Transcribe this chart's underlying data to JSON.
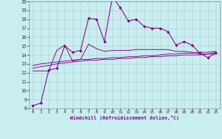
{
  "xlabel": "Windchill (Refroidissement éolien,°C)",
  "background_color": "#c8eef0",
  "line_color": "#880088",
  "xlim": [
    -0.5,
    23.5
  ],
  "ylim": [
    8,
    20
  ],
  "xticks": [
    0,
    1,
    2,
    3,
    4,
    5,
    6,
    7,
    8,
    9,
    10,
    11,
    12,
    13,
    14,
    15,
    16,
    17,
    18,
    19,
    20,
    21,
    22,
    23
  ],
  "yticks": [
    8,
    9,
    10,
    11,
    12,
    13,
    14,
    15,
    16,
    17,
    18,
    19,
    20
  ],
  "main_x": [
    0,
    1,
    2,
    3,
    4,
    5,
    6,
    7,
    8,
    9,
    10,
    11,
    12,
    13,
    14,
    15,
    16,
    17,
    18,
    19,
    20,
    21,
    22,
    23
  ],
  "main_y": [
    8.3,
    8.6,
    12.3,
    12.5,
    15.0,
    14.3,
    14.5,
    18.1,
    18.0,
    15.5,
    20.5,
    19.3,
    17.8,
    18.0,
    17.2,
    17.0,
    17.0,
    16.6,
    15.1,
    15.5,
    15.1,
    14.2,
    13.7,
    14.2
  ],
  "line1_x": [
    0,
    1,
    2,
    3,
    4,
    5,
    6,
    7,
    8,
    9,
    10,
    11,
    12,
    13,
    14,
    15,
    16,
    17,
    18,
    19,
    20,
    21,
    22,
    23
  ],
  "line1_y": [
    12.2,
    12.2,
    12.2,
    14.5,
    15.1,
    13.3,
    13.5,
    15.2,
    14.7,
    14.4,
    14.5,
    14.5,
    14.5,
    14.6,
    14.6,
    14.6,
    14.6,
    14.6,
    14.4,
    14.4,
    14.3,
    14.1,
    14.1,
    14.3
  ],
  "line2_x": [
    0,
    1,
    2,
    3,
    4,
    5,
    6,
    7,
    8,
    9,
    10,
    11,
    12,
    13,
    14,
    15,
    16,
    17,
    18,
    19,
    20,
    21,
    22,
    23
  ],
  "line2_y": [
    12.5,
    12.7,
    12.8,
    13.0,
    13.1,
    13.2,
    13.3,
    13.4,
    13.4,
    13.5,
    13.5,
    13.6,
    13.6,
    13.7,
    13.7,
    13.8,
    13.8,
    13.9,
    13.9,
    14.0,
    14.0,
    14.0,
    14.1,
    14.1
  ],
  "line3_x": [
    0,
    1,
    2,
    3,
    4,
    5,
    6,
    7,
    8,
    9,
    10,
    11,
    12,
    13,
    14,
    15,
    16,
    17,
    18,
    19,
    20,
    21,
    22,
    23
  ],
  "line3_y": [
    12.8,
    13.0,
    13.1,
    13.2,
    13.3,
    13.4,
    13.5,
    13.5,
    13.6,
    13.6,
    13.7,
    13.7,
    13.8,
    13.8,
    13.9,
    13.9,
    14.0,
    14.1,
    14.1,
    14.2,
    14.2,
    14.3,
    14.3,
    14.4
  ]
}
